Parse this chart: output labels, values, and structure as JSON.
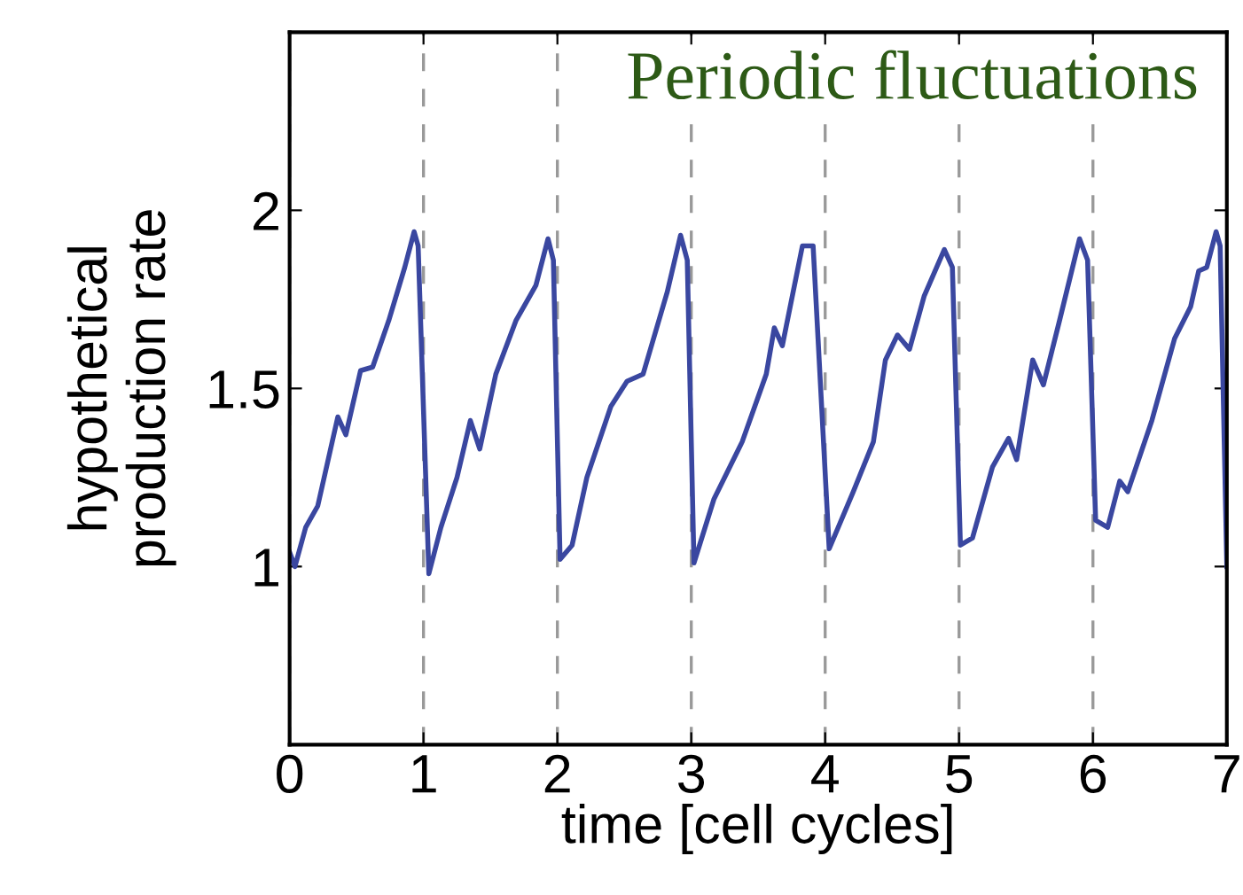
{
  "chart_data": {
    "type": "line",
    "title": "Periodic fluctuations",
    "xlabel": "time [cell cycles]",
    "ylabel": "hypothetical\nproduction rate",
    "xlim": [
      0,
      7
    ],
    "xticks": [
      0,
      1,
      2,
      3,
      4,
      5,
      6,
      7
    ],
    "ylim": [
      0.5,
      2.5
    ],
    "yticks": [
      1,
      1.5,
      2
    ],
    "grid": "x",
    "line_style": "solid",
    "marker": "none",
    "series": [
      {
        "color": "#3a47a0",
        "x": [
          0,
          0.04,
          0.12,
          0.21,
          0.36,
          0.42,
          0.53,
          0.62,
          0.74,
          0.86,
          0.93,
          0.96,
          1.04,
          1.13,
          1.25,
          1.35,
          1.42,
          1.54,
          1.69,
          1.84,
          1.93,
          1.97,
          2.02,
          2.11,
          2.22,
          2.4,
          2.52,
          2.64,
          2.82,
          2.92,
          2.97,
          3.02,
          3.17,
          3.38,
          3.56,
          3.62,
          3.68,
          3.83,
          3.91,
          4.03,
          4.21,
          4.36,
          4.45,
          4.54,
          4.63,
          4.74,
          4.89,
          4.95,
          5.01,
          5.1,
          5.25,
          5.37,
          5.43,
          5.55,
          5.63,
          5.75,
          5.9,
          5.96,
          6.02,
          6.11,
          6.2,
          6.26,
          6.44,
          6.61,
          6.73,
          6.79,
          6.85,
          6.92,
          6.95,
          7.0
        ],
        "values": [
          1.04,
          1.0,
          1.11,
          1.17,
          1.42,
          1.37,
          1.55,
          1.56,
          1.69,
          1.84,
          1.94,
          1.9,
          0.98,
          1.11,
          1.25,
          1.41,
          1.33,
          1.54,
          1.69,
          1.79,
          1.92,
          1.86,
          1.02,
          1.06,
          1.25,
          1.45,
          1.52,
          1.54,
          1.77,
          1.93,
          1.86,
          1.01,
          1.19,
          1.35,
          1.54,
          1.67,
          1.62,
          1.9,
          1.9,
          1.05,
          1.21,
          1.35,
          1.58,
          1.65,
          1.61,
          1.76,
          1.89,
          1.84,
          1.06,
          1.08,
          1.28,
          1.36,
          1.3,
          1.58,
          1.51,
          1.69,
          1.92,
          1.86,
          1.13,
          1.11,
          1.24,
          1.21,
          1.41,
          1.64,
          1.73,
          1.83,
          1.84,
          1.94,
          1.9,
          1.0
        ]
      }
    ]
  }
}
